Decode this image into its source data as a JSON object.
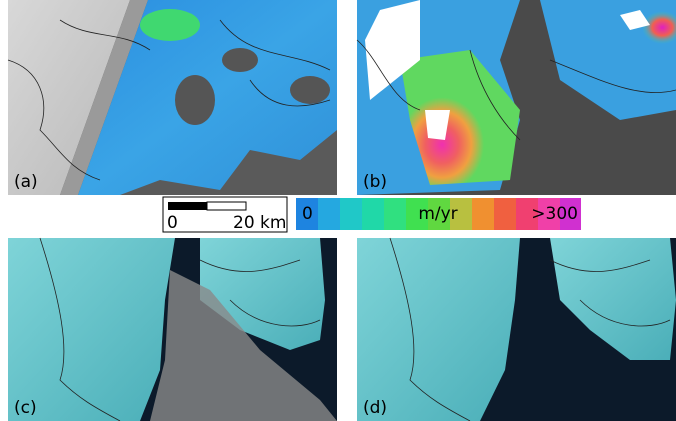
{
  "panels": [
    {
      "label": "(a)"
    },
    {
      "label": "(b)"
    },
    {
      "label": "(c)"
    },
    {
      "label": "(d)"
    }
  ],
  "scale_bar": {
    "start": "0",
    "end": "20 km"
  },
  "colorbar": {
    "min": "0",
    "unit": "m/yr",
    "max": ">300"
  }
}
